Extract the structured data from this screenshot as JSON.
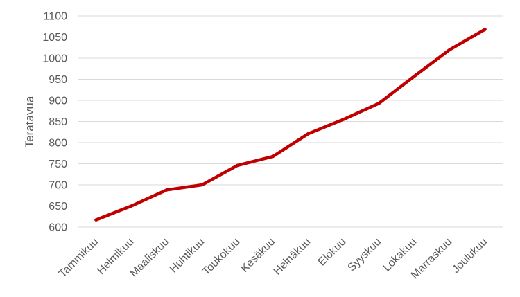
{
  "chart_data": {
    "type": "line",
    "title": "",
    "xlabel": "",
    "ylabel": "Teratavua",
    "categories": [
      "Tammikuu",
      "Helmikuu",
      "Maaliskuu",
      "Huhtikuu",
      "Toukokuu",
      "Kesäkuu",
      "Heinäkuu",
      "Elokuu",
      "Syyskuu",
      "Lokakuu",
      "Marraskuu",
      "Joulukuu"
    ],
    "series": [
      {
        "values": [
          617,
          650,
          688,
          700,
          746,
          767,
          821,
          855,
          893,
          957,
          1020,
          1068
        ],
        "color": "#c00000"
      }
    ],
    "ylim": [
      600,
      1100
    ],
    "yticks": [
      600,
      650,
      700,
      750,
      800,
      850,
      900,
      950,
      1000,
      1050,
      1100
    ],
    "grid": true,
    "legend": "none"
  }
}
